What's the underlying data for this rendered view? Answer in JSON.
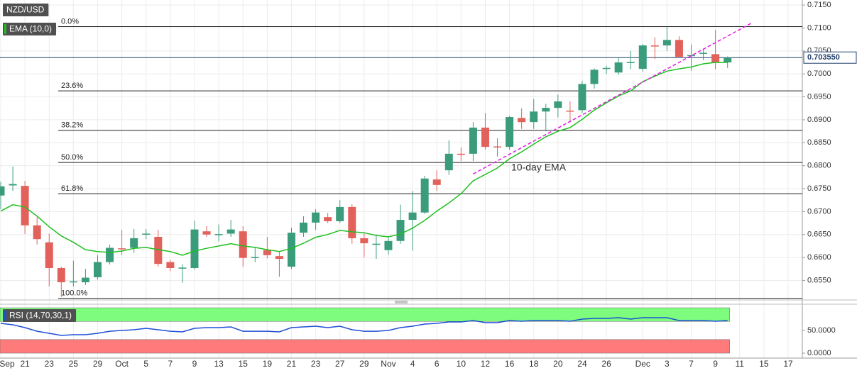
{
  "chart_data": [
    {
      "type": "candlestick",
      "series": [
        {
          "name": "NZD/USD",
          "up_color": "#3b9c7c",
          "down_color": "#e2615a",
          "open": [
            0.6735,
            0.6757,
            0.6756,
            0.667,
            0.6633,
            0.6577,
            0.6546,
            0.6546,
            0.6557,
            0.659,
            0.662,
            0.6621,
            0.6651,
            0.6645,
            0.659,
            0.6577,
            0.6577,
            0.6657,
            0.665,
            0.6652,
            0.6657,
            0.66,
            0.6616,
            0.6603,
            0.658,
            0.6654,
            0.6676,
            0.6688,
            0.6679,
            0.671,
            0.6642,
            0.6629,
            0.6616,
            0.6636,
            0.6682,
            0.6698,
            0.677,
            0.679,
            0.6826,
            0.6826,
            0.6883,
            0.6842,
            0.6841,
            0.6904,
            0.6895,
            0.6918,
            0.6926,
            0.692,
            0.6921,
            0.6978,
            0.7012,
            0.7003,
            0.7025,
            0.7011,
            0.7062,
            0.7062,
            0.7074,
            0.704,
            0.7045,
            0.7043,
            0.7025,
            null,
            null,
            null,
            null,
            null
          ],
          "high": [
            0.6765,
            0.6798,
            0.6767,
            0.6688,
            0.6652,
            0.658,
            0.6593,
            0.6575,
            0.6605,
            0.6628,
            0.666,
            0.6662,
            0.6662,
            0.666,
            0.6595,
            0.6585,
            0.668,
            0.6668,
            0.6672,
            0.6682,
            0.6668,
            0.6623,
            0.6645,
            0.6612,
            0.6665,
            0.669,
            0.6705,
            0.6697,
            0.6725,
            0.6716,
            0.6655,
            0.665,
            0.6645,
            0.6715,
            0.6745,
            0.6778,
            0.679,
            0.6855,
            0.684,
            0.6895,
            0.6915,
            0.686,
            0.6908,
            0.6925,
            0.6945,
            0.6935,
            0.6955,
            0.694,
            0.6985,
            0.7012,
            0.7018,
            0.7035,
            0.705,
            0.7065,
            0.708,
            0.7103,
            0.7082,
            0.7064,
            0.7055,
            0.7096,
            0.7038,
            null,
            null,
            null,
            null,
            null
          ],
          "low": [
            0.6705,
            0.6745,
            0.6651,
            0.6628,
            0.6537,
            0.6514,
            0.6537,
            0.654,
            0.6552,
            0.6585,
            0.6605,
            0.661,
            0.664,
            0.658,
            0.657,
            0.6545,
            0.6573,
            0.6645,
            0.6635,
            0.6645,
            0.658,
            0.659,
            0.6598,
            0.6558,
            0.6575,
            0.6645,
            0.666,
            0.6675,
            0.6675,
            0.663,
            0.66,
            0.6597,
            0.6606,
            0.663,
            0.6615,
            0.6695,
            0.6745,
            0.678,
            0.681,
            0.681,
            0.6835,
            0.682,
            0.6835,
            0.688,
            0.688,
            0.6875,
            0.6905,
            0.6895,
            0.6915,
            0.6968,
            0.7,
            0.6998,
            0.701,
            0.7005,
            0.7032,
            0.705,
            0.7035,
            0.7007,
            0.703,
            0.701,
            0.7013,
            null,
            null,
            null,
            null,
            null
          ],
          "close": [
            0.6755,
            0.676,
            0.667,
            0.664,
            0.6577,
            0.6546,
            0.6548,
            0.6556,
            0.659,
            0.6621,
            0.6619,
            0.6642,
            0.6652,
            0.6586,
            0.6577,
            0.6578,
            0.6661,
            0.665,
            0.6651,
            0.6661,
            0.6599,
            0.6601,
            0.6605,
            0.6597,
            0.6654,
            0.6676,
            0.6698,
            0.6679,
            0.671,
            0.6642,
            0.6631,
            0.663,
            0.6636,
            0.6682,
            0.6698,
            0.6772,
            0.6758,
            0.6826,
            0.6825,
            0.6883,
            0.6841,
            0.6841,
            0.6906,
            0.6895,
            0.6918,
            0.6926,
            0.694,
            0.6918,
            0.6978,
            0.7009,
            0.7013,
            0.7025,
            0.7026,
            0.7062,
            0.7061,
            0.7074,
            0.7037,
            0.7041,
            0.7046,
            0.7025,
            0.70355,
            null,
            null,
            null,
            null,
            null
          ]
        },
        {
          "name": "EMA (10,0)",
          "type": "line",
          "color": "#1fbf1f",
          "values": [
            0.6701,
            0.6715,
            0.671,
            0.669,
            0.6667,
            0.6647,
            0.6633,
            0.6617,
            0.6613,
            0.6611,
            0.6614,
            0.662,
            0.6622,
            0.6617,
            0.6613,
            0.6605,
            0.6614,
            0.662,
            0.6625,
            0.663,
            0.6625,
            0.6622,
            0.6617,
            0.6613,
            0.662,
            0.6631,
            0.6644,
            0.665,
            0.6659,
            0.6656,
            0.6654,
            0.6648,
            0.6645,
            0.6651,
            0.6664,
            0.6681,
            0.6701,
            0.6719,
            0.6739,
            0.6767,
            0.6781,
            0.6795,
            0.6815,
            0.683,
            0.6847,
            0.6863,
            0.6875,
            0.6883,
            0.6901,
            0.6921,
            0.6937,
            0.6952,
            0.6963,
            0.6983,
            0.6995,
            0.7006,
            0.7011,
            0.7015,
            0.7022,
            0.7025,
            0.7025,
            null,
            null,
            null,
            null,
            null
          ]
        }
      ],
      "ylim": [
        0.6509,
        0.7161
      ],
      "yticks": [
        {
          "value": 0.715,
          "label": "0.7150"
        },
        {
          "value": 0.71,
          "label": "0.7100"
        },
        {
          "value": 0.705,
          "label": "0.7050"
        },
        {
          "value": 0.7,
          "label": "0.7000"
        },
        {
          "value": 0.695,
          "label": "0.6950"
        },
        {
          "value": 0.69,
          "label": "0.6900"
        },
        {
          "value": 0.685,
          "label": "0.6850"
        },
        {
          "value": 0.68,
          "label": "0.6800"
        },
        {
          "value": 0.675,
          "label": "0.6750"
        },
        {
          "value": 0.67,
          "label": "0.6700"
        },
        {
          "value": 0.665,
          "label": "0.6650"
        },
        {
          "value": 0.66,
          "label": "0.6600"
        },
        {
          "value": 0.655,
          "label": "0.6550"
        }
      ],
      "grid": true,
      "levels": [
        {
          "label": "0.0%",
          "value": 0.7103
        },
        {
          "label": "23.6%",
          "value": 0.6963
        },
        {
          "label": "38.2%",
          "value": 0.6877
        },
        {
          "label": "50.0%",
          "value": 0.6807
        },
        {
          "label": "61.8%",
          "value": 0.6739
        },
        {
          "label": "100.0%",
          "value": 0.6511
        }
      ],
      "current_price": {
        "value": 0.70355,
        "label": "0.703550",
        "color": "#23406e"
      },
      "trendline": {
        "x": [
          39,
          62
        ],
        "values": [
          0.6782,
          0.7111
        ],
        "color": "#e619e6"
      },
      "annotation": "10-day EMA"
    },
    {
      "type": "line",
      "categories": [
        "Sep",
        null,
        "21",
        null,
        "23",
        null,
        "25",
        null,
        "29",
        null,
        "Oct",
        null,
        "5",
        null,
        "7",
        null,
        "9",
        null,
        "13",
        null,
        "15",
        null,
        "19",
        null,
        "21",
        null,
        "23",
        null,
        "27",
        null,
        "29",
        null,
        "Nov",
        null,
        "4",
        null,
        "6",
        null,
        "10",
        null,
        "12",
        null,
        "16",
        null,
        "18",
        null,
        "20",
        null,
        "24",
        null,
        "26",
        null,
        null,
        "Dec",
        null,
        "3",
        null,
        "7",
        null,
        "9",
        null,
        "11",
        null,
        "15",
        null,
        "17"
      ],
      "series": [
        {
          "name": "RSI (14,70,30,1)",
          "color": "#1e4fd6",
          "values": [
            65.6,
            62.5,
            56.3,
            48.4,
            43.8,
            39.1,
            40.6,
            40.6,
            43.8,
            48.4,
            50,
            51.6,
            54.7,
            51.6,
            48.4,
            46.9,
            54.7,
            56.3,
            56.3,
            57.8,
            48.4,
            48.4,
            48.4,
            46.9,
            56.3,
            57.8,
            59.4,
            56.3,
            59.4,
            51.6,
            48.4,
            48.4,
            50,
            56.3,
            59.4,
            64.1,
            65.6,
            68.8,
            68.8,
            71.9,
            67.2,
            67.2,
            71.9,
            70.3,
            71.9,
            71.9,
            71.9,
            70.3,
            75,
            76.6,
            76.6,
            78.1,
            75,
            78.1,
            78.1,
            78.1,
            71.9,
            71.9,
            71.9,
            70.3,
            71.9,
            null,
            null,
            null,
            null,
            null
          ]
        }
      ],
      "ylim": [
        -10.9,
        106.3
      ],
      "yticks": [
        {
          "value": 50,
          "label": "50.0000"
        },
        {
          "value": 0,
          "label": "0.0000"
        }
      ],
      "bands": [
        {
          "range": [
            70,
            100
          ],
          "color": "#7dfc7d"
        },
        {
          "range": [
            0,
            30
          ],
          "color": "#ff7b7b"
        }
      ]
    }
  ]
}
